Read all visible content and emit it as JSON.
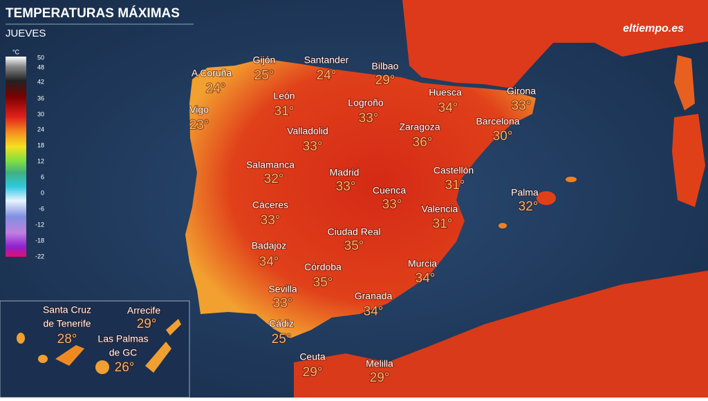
{
  "header": {
    "title": "TEMPERATURAS MÁXIMAS",
    "subtitle": "JUEVES",
    "logo": "eltiempo.es"
  },
  "legend": {
    "unit": "°C",
    "ticks": [
      50,
      48,
      42,
      36,
      30,
      24,
      18,
      12,
      6,
      0,
      -6,
      -12,
      -18,
      -22
    ]
  },
  "cities": [
    {
      "name": [
        "A Coruña"
      ],
      "temp": "24°"
    },
    {
      "name": [
        "Gijón"
      ],
      "temp": "25°"
    },
    {
      "name": [
        "Santander"
      ],
      "temp": "24°"
    },
    {
      "name": [
        "Bilbao"
      ],
      "temp": "29°"
    },
    {
      "name": [
        "Vigo"
      ],
      "temp": "23°"
    },
    {
      "name": [
        "León"
      ],
      "temp": "31°"
    },
    {
      "name": [
        "Logroño"
      ],
      "temp": "33°"
    },
    {
      "name": [
        "Huesca"
      ],
      "temp": "34°"
    },
    {
      "name": [
        "Girona"
      ],
      "temp": "33°"
    },
    {
      "name": [
        "Valladolid"
      ],
      "temp": "33°"
    },
    {
      "name": [
        "Zaragoza"
      ],
      "temp": "36°"
    },
    {
      "name": [
        "Barcelona"
      ],
      "temp": "30°"
    },
    {
      "name": [
        "Salamanca"
      ],
      "temp": "32°"
    },
    {
      "name": [
        "Madrid"
      ],
      "temp": "33°"
    },
    {
      "name": [
        "Castellón"
      ],
      "temp": "31°"
    },
    {
      "name": [
        "Cuenca"
      ],
      "temp": "33°"
    },
    {
      "name": [
        "Palma"
      ],
      "temp": "32°"
    },
    {
      "name": [
        "Cáceres"
      ],
      "temp": "33°"
    },
    {
      "name": [
        "Valencia"
      ],
      "temp": "31°"
    },
    {
      "name": [
        "Ciudad Real"
      ],
      "temp": "35°"
    },
    {
      "name": [
        "Badajoz"
      ],
      "temp": "34°"
    },
    {
      "name": [
        "Córdoba"
      ],
      "temp": "35°"
    },
    {
      "name": [
        "Murcia"
      ],
      "temp": "34°"
    },
    {
      "name": [
        "Sevilla"
      ],
      "temp": "33°"
    },
    {
      "name": [
        "Granada"
      ],
      "temp": "34°"
    },
    {
      "name": [
        "Cádiz"
      ],
      "temp": "25°"
    },
    {
      "name": [
        "Ceuta"
      ],
      "temp": "29°"
    },
    {
      "name": [
        "Melilla"
      ],
      "temp": "29°"
    },
    {
      "name": [
        "Santa Cruz",
        "de Tenerife"
      ],
      "temp": "28°"
    },
    {
      "name": [
        "Arrecife"
      ],
      "temp": "29°"
    },
    {
      "name": [
        "Las Palmas",
        "de GC"
      ],
      "temp": "26°"
    }
  ]
}
